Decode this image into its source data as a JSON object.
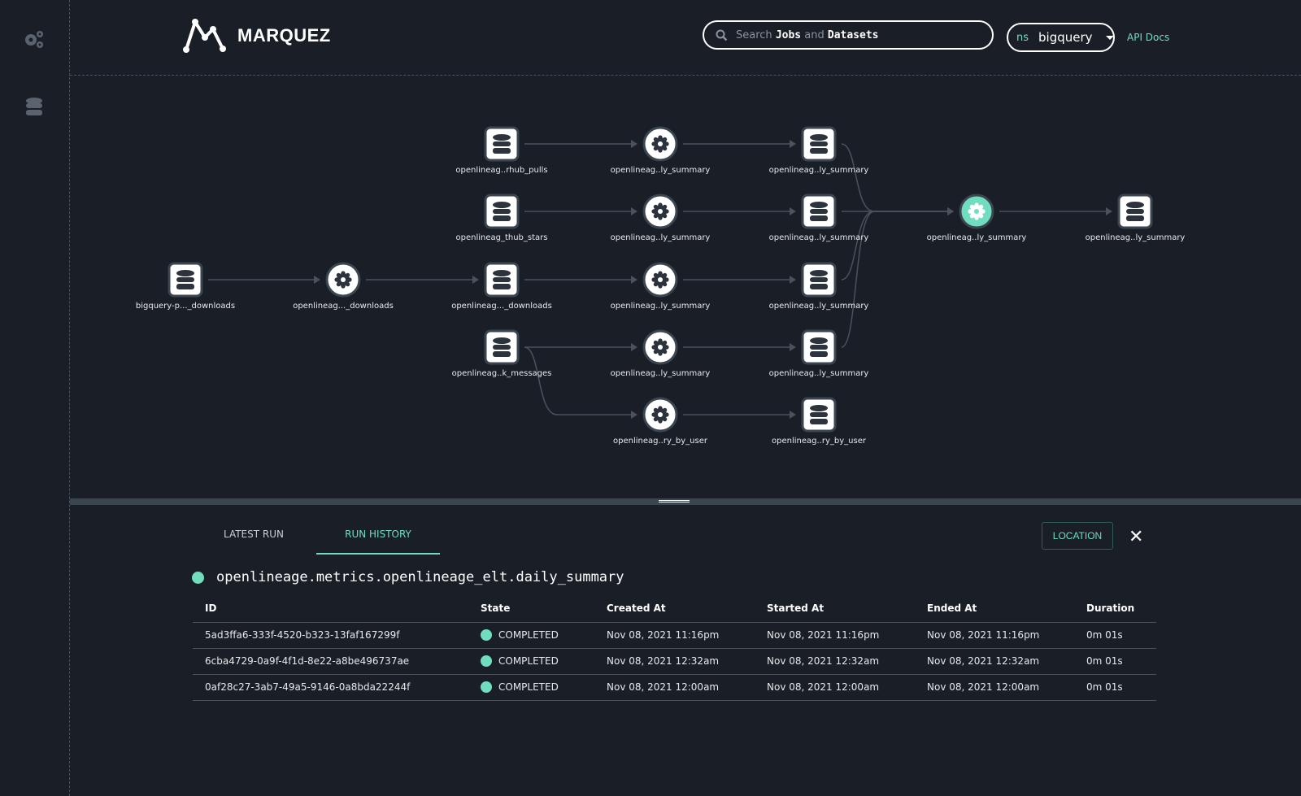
{
  "app": {
    "name": "MARQUEZ",
    "api_docs": "API Docs"
  },
  "search": {
    "prefix": "Search",
    "jobs": "Jobs",
    "and": "and",
    "datasets": "Datasets"
  },
  "namespace": {
    "label": "ns",
    "value": "bigquery"
  },
  "colors": {
    "accent": "#71ddbf",
    "background": "#1a1f27"
  },
  "graph": {
    "nodes": [
      {
        "label": "bigquery-p..._downloads",
        "type": "dataset"
      },
      {
        "label": "openlineag..._downloads",
        "type": "job"
      },
      {
        "label": "openlineag..._downloads",
        "type": "dataset"
      },
      {
        "label": "openlineag..rhub_pulls",
        "type": "dataset"
      },
      {
        "label": "openlineag_thub_stars",
        "type": "dataset"
      },
      {
        "label": "openlineag..k_messages",
        "type": "dataset"
      },
      {
        "label": "openlineag..ly_summary",
        "type": "job"
      },
      {
        "label": "openlineag..ly_summary",
        "type": "job"
      },
      {
        "label": "openlineag..ly_summary",
        "type": "job"
      },
      {
        "label": "openlineag..ly_summary",
        "type": "job"
      },
      {
        "label": "openlineag..ry_by_user",
        "type": "job"
      },
      {
        "label": "openlineag..ly_summary",
        "type": "dataset"
      },
      {
        "label": "openlineag..ly_summary",
        "type": "dataset"
      },
      {
        "label": "openlineag..ly_summary",
        "type": "dataset"
      },
      {
        "label": "openlineag..ly_summary",
        "type": "dataset"
      },
      {
        "label": "openlineag..ry_by_user",
        "type": "dataset"
      },
      {
        "label": "openlineag..ly_summary",
        "type": "job",
        "selected": true
      },
      {
        "label": "openlineag..ly_summary",
        "type": "dataset"
      }
    ],
    "edges": [
      [
        0,
        1
      ],
      [
        1,
        2
      ],
      [
        3,
        6
      ],
      [
        4,
        7
      ],
      [
        2,
        8
      ],
      [
        5,
        9
      ],
      [
        5,
        10
      ],
      [
        6,
        11
      ],
      [
        7,
        12
      ],
      [
        8,
        13
      ],
      [
        9,
        14
      ],
      [
        10,
        15
      ],
      [
        11,
        16
      ],
      [
        12,
        16
      ],
      [
        13,
        16
      ],
      [
        14,
        16
      ],
      [
        16,
        17
      ]
    ]
  },
  "panel": {
    "tabs": [
      {
        "label": "LATEST RUN"
      },
      {
        "label": "RUN HISTORY",
        "active": true
      }
    ],
    "location_button": "LOCATION",
    "close": "✕",
    "job_name": "openlineage.metrics.openlineage_elt.daily_summary",
    "columns": [
      "ID",
      "State",
      "Created At",
      "Started At",
      "Ended At",
      "Duration"
    ],
    "rows": [
      [
        "5ad3ffa6-333f-4520-b323-13faf167299f",
        "COMPLETED",
        "Nov 08, 2021 11:16pm",
        "Nov 08, 2021 11:16pm",
        "Nov 08, 2021 11:16pm",
        "0m 01s"
      ],
      [
        "6cba4729-0a9f-4f1d-8e22-a8be496737ae",
        "COMPLETED",
        "Nov 08, 2021 12:32am",
        "Nov 08, 2021 12:32am",
        "Nov 08, 2021 12:32am",
        "0m 01s"
      ],
      [
        "0af28c27-3ab7-49a5-9146-0a8bda22244f",
        "COMPLETED",
        "Nov 08, 2021 12:00am",
        "Nov 08, 2021 12:00am",
        "Nov 08, 2021 12:00am",
        "0m 01s"
      ]
    ]
  }
}
